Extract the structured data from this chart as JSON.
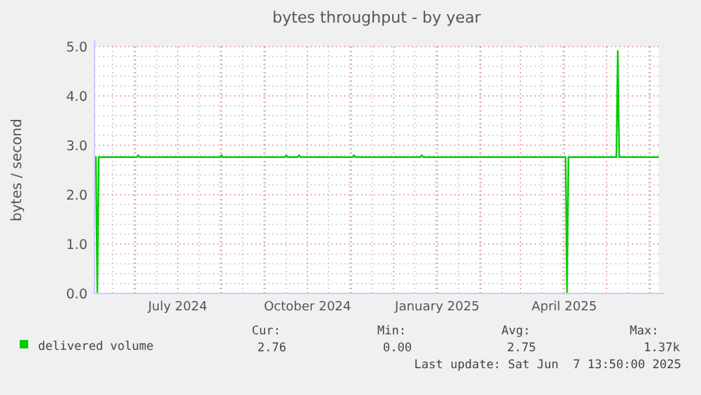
{
  "chart_data": {
    "type": "line",
    "title": "bytes throughput - by year",
    "ylabel": "bytes / second",
    "x": [
      "2024-05-03",
      "2024-05-04",
      "2024-05-05",
      "2024-05-06",
      "2024-06-02",
      "2024-06-03",
      "2024-06-04",
      "2024-07-31",
      "2024-08-01",
      "2024-08-02",
      "2024-09-15",
      "2024-09-16",
      "2024-09-17",
      "2024-09-24",
      "2024-09-25",
      "2024-09-26",
      "2024-11-02",
      "2024-11-03",
      "2024-11-04",
      "2024-12-20",
      "2024-12-21",
      "2024-12-22",
      "2025-04-02",
      "2025-04-03",
      "2025-04-04",
      "2025-05-08",
      "2025-05-09",
      "2025-05-10",
      "2025-06-07"
    ],
    "series": [
      {
        "name": "delivered volume",
        "color": "#00cc00",
        "values": [
          2.76,
          2.76,
          0,
          2.76,
          2.76,
          2.8,
          2.76,
          2.76,
          2.8,
          2.76,
          2.76,
          2.8,
          2.76,
          2.76,
          2.8,
          2.76,
          2.76,
          2.8,
          2.76,
          2.76,
          2.8,
          2.76,
          2.76,
          0,
          2.76,
          2.76,
          4.91,
          2.76,
          2.76
        ]
      }
    ],
    "xlim": [
      "2024-05-03",
      "2025-06-07"
    ],
    "xticks": [
      {
        "value": "2024-07-01",
        "label": "July 2024"
      },
      {
        "value": "2024-10-01",
        "label": "October 2024"
      },
      {
        "value": "2025-01-01",
        "label": "January 2025"
      },
      {
        "value": "2025-04-01",
        "label": "April 2025"
      }
    ],
    "ylim": [
      0,
      5
    ],
    "yticks": [
      {
        "value": 0,
        "label": "0.0"
      },
      {
        "value": 1,
        "label": "1.0"
      },
      {
        "value": 2,
        "label": "2.0"
      },
      {
        "value": 3,
        "label": "3.0"
      },
      {
        "value": 4,
        "label": "4.0"
      },
      {
        "value": 5,
        "label": "5.0"
      }
    ],
    "grid": true,
    "legend": "bottom left",
    "annotations": [
      "Cur:",
      "Min:",
      "Avg:",
      "Max:",
      "2.76",
      "0.00",
      "2.75",
      "1.37k",
      "Last update: Sat Jun  7 13:50:00 2025"
    ]
  }
}
